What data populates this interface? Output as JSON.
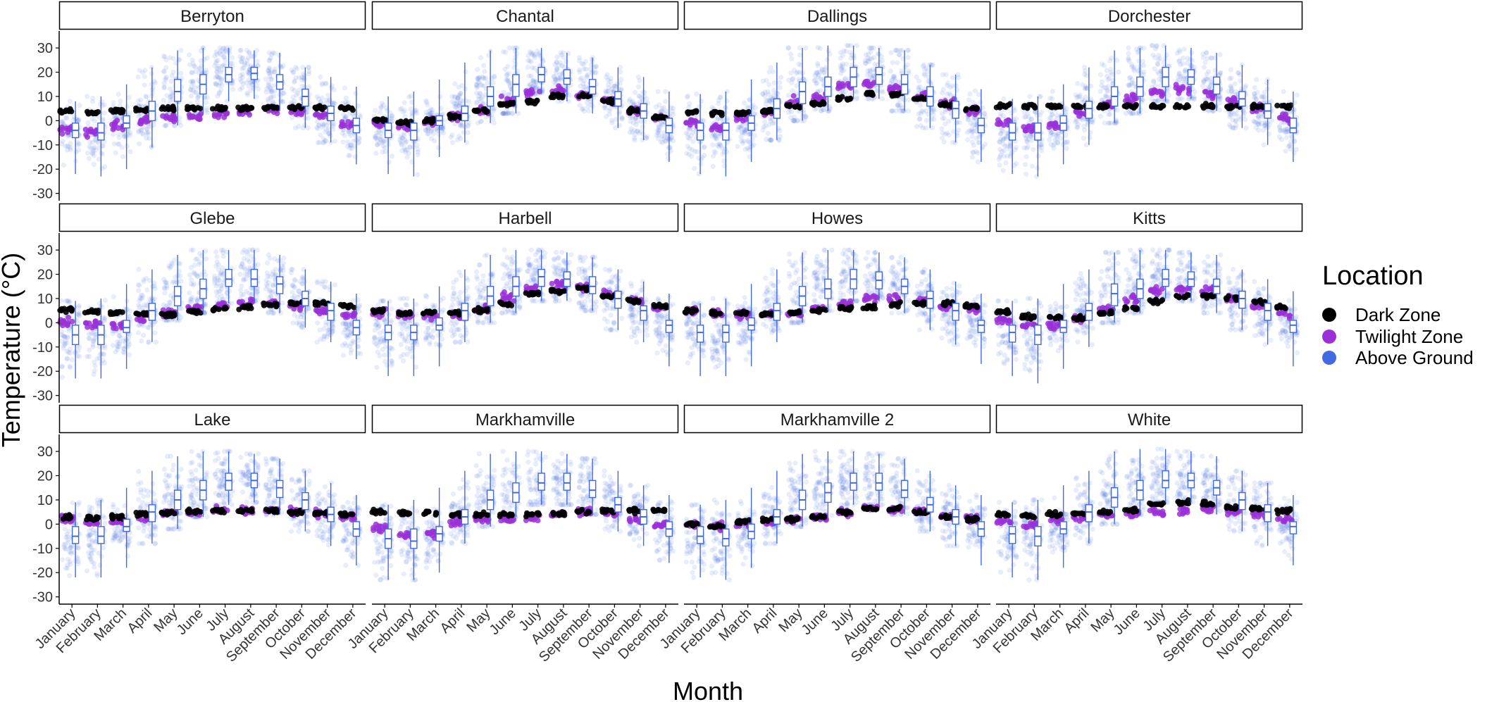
{
  "colors": {
    "dark_zone": "#000000",
    "twilight_zone": "#9b30d9",
    "above_ground": "#4169e1",
    "box_fill": "#ffffff",
    "strip_border": "#000000",
    "axis": "#000000",
    "tick_text": "#333333"
  },
  "chart_data": {
    "type": "scatter",
    "subtype": "faceted jittered points with boxplots",
    "xlabel": "Month",
    "ylabel": "Temperature (°C)",
    "ylim": [
      -33,
      37
    ],
    "y_ticks": [
      -30,
      -20,
      -10,
      0,
      10,
      20,
      30
    ],
    "months": [
      "January",
      "February",
      "March",
      "April",
      "May",
      "June",
      "July",
      "August",
      "September",
      "October",
      "November",
      "December"
    ],
    "grid": false,
    "legend": {
      "title": "Location",
      "placement": "right",
      "entries": [
        "Dark Zone",
        "Twilight Zone",
        "Above Ground"
      ]
    },
    "facet_layout": {
      "rows": 3,
      "cols": 4
    },
    "facets": [
      {
        "title": "Berryton",
        "dark": [
          4,
          3.5,
          4,
          4.5,
          5,
          5,
          5,
          5,
          5.5,
          5.5,
          5.5,
          5
        ],
        "twilight": [
          -4,
          -5,
          -2,
          0,
          1,
          1.5,
          2.5,
          3.5,
          4.5,
          4,
          2,
          -1.5
        ],
        "above": {
          "median": [
            -4,
            -5,
            -1,
            4,
            12,
            15,
            19,
            19.5,
            16,
            10,
            3,
            -2
          ],
          "q1": [
            -7,
            -8,
            -3,
            0,
            8,
            11,
            16,
            17,
            13,
            6,
            0,
            -5
          ],
          "q3": [
            -1,
            -1,
            2,
            8,
            17,
            19,
            22,
            22,
            19,
            13,
            6,
            1
          ],
          "min": [
            -22,
            -23,
            -20,
            -11,
            -2,
            3,
            8,
            9,
            4,
            -3,
            -9,
            -18
          ],
          "max": [
            8,
            10,
            15,
            22,
            29,
            30,
            30,
            29,
            28,
            22,
            18,
            14
          ]
        }
      },
      {
        "title": "Chantal",
        "dark": [
          0,
          -1,
          0,
          2,
          4,
          7,
          8,
          10,
          10.5,
          8,
          4,
          1.5
        ],
        "twilight": [
          -1,
          -2.5,
          0,
          2,
          4,
          8,
          11,
          12,
          11,
          8,
          4,
          1
        ],
        "above": {
          "median": [
            -4,
            -4,
            0,
            3,
            10,
            15,
            19,
            17.5,
            14,
            9,
            4,
            -2
          ],
          "q1": [
            -7,
            -8,
            -2,
            0,
            6,
            10,
            16,
            15,
            11,
            6,
            1,
            -5
          ],
          "q3": [
            -1,
            -1,
            2,
            6,
            14,
            19,
            22,
            21,
            17,
            12,
            7,
            1
          ],
          "min": [
            -22,
            -23,
            -15,
            -9,
            -1,
            3,
            11,
            8,
            3,
            -3,
            -8,
            -17
          ],
          "max": [
            10,
            12,
            17,
            24,
            29,
            30,
            30,
            28,
            26,
            22,
            18,
            12
          ]
        }
      },
      {
        "title": "Dallings",
        "dark": [
          3.5,
          3,
          3,
          4,
          6,
          7,
          9,
          11,
          11,
          9,
          6.5,
          5
        ],
        "twilight": [
          -1,
          -3,
          1,
          3,
          8,
          10,
          14,
          15,
          13,
          10,
          7,
          4
        ],
        "above": {
          "median": [
            -4,
            -4,
            -1,
            5,
            12,
            14,
            18,
            19,
            15,
            10,
            5,
            -2
          ],
          "q1": [
            -8,
            -8,
            -4,
            1,
            7,
            10,
            14,
            15,
            11,
            6,
            1,
            -5
          ],
          "q3": [
            -1,
            -1,
            2,
            9,
            16,
            18,
            22,
            22,
            19,
            14,
            8,
            1
          ],
          "min": [
            -22,
            -23,
            -17,
            -8,
            0,
            4,
            9,
            9,
            4,
            -3,
            -9,
            -17
          ],
          "max": [
            11,
            12,
            17,
            24,
            30,
            31,
            31,
            30,
            29,
            23,
            19,
            13
          ]
        }
      },
      {
        "title": "Dorchester",
        "dark": [
          6,
          6,
          6,
          6,
          6,
          6,
          6,
          6,
          6,
          6,
          6,
          6
        ],
        "twilight": [
          -1,
          -3,
          -2,
          3,
          7,
          9,
          12,
          13,
          11,
          8,
          5,
          1
        ],
        "above": {
          "median": [
            -5,
            -5,
            -1,
            5,
            10,
            14,
            18,
            18,
            15,
            9,
            4,
            -3
          ],
          "q1": [
            -8,
            -8,
            -4,
            1,
            6,
            10,
            14,
            15,
            11,
            6,
            1,
            -5
          ],
          "q3": [
            -1,
            -1,
            2,
            8,
            14,
            18,
            22,
            21,
            18,
            12,
            7,
            1
          ],
          "min": [
            -22,
            -23,
            -18,
            -10,
            -1,
            3,
            8,
            9,
            4,
            -3,
            -10,
            -17
          ],
          "max": [
            9,
            10,
            15,
            22,
            29,
            30,
            31,
            30,
            28,
            23,
            17,
            12
          ]
        }
      },
      {
        "title": "Glebe",
        "dark": [
          5.5,
          5,
          4,
          3.5,
          3.5,
          4.5,
          6,
          6.5,
          7.5,
          8,
          8,
          7
        ],
        "twilight": [
          0,
          -1,
          -1,
          2,
          4,
          6,
          7,
          8,
          8,
          7,
          5,
          3
        ],
        "above": {
          "median": [
            -5,
            -5,
            -2,
            5,
            11,
            14,
            18,
            18,
            16,
            10,
            5,
            -2
          ],
          "q1": [
            -9,
            -9,
            -4,
            1,
            7,
            10,
            15,
            15,
            12,
            7,
            1,
            -5
          ],
          "q3": [
            -1,
            -1,
            1,
            8,
            15,
            18,
            22,
            22,
            19,
            13,
            8,
            1
          ],
          "min": [
            -23,
            -23,
            -19,
            -8,
            1,
            4,
            8,
            9,
            4,
            -2,
            -8,
            -15
          ],
          "max": [
            9,
            10,
            16,
            22,
            28,
            30,
            30,
            30,
            28,
            22,
            17,
            12
          ]
        }
      },
      {
        "title": "Harbell",
        "dark": [
          5,
          4,
          4,
          4,
          5,
          8,
          12,
          13,
          14,
          11,
          9,
          7
        ],
        "twilight": [
          4,
          3,
          3,
          3,
          6,
          11,
          14,
          16,
          15,
          12,
          9,
          6
        ],
        "above": {
          "median": [
            -4,
            -4,
            -1,
            5,
            11,
            15,
            19,
            18,
            15,
            10,
            5,
            -1
          ],
          "q1": [
            -7,
            -7,
            -3,
            1,
            7,
            11,
            15,
            15,
            12,
            6,
            1,
            -4
          ],
          "q3": [
            -1,
            -1,
            2,
            8,
            15,
            19,
            22,
            21,
            19,
            13,
            7,
            1
          ],
          "min": [
            -22,
            -22,
            -18,
            -8,
            0,
            4,
            9,
            9,
            5,
            -3,
            -8,
            -18
          ],
          "max": [
            9,
            10,
            15,
            22,
            28,
            30,
            30,
            29,
            27,
            22,
            17,
            12
          ]
        }
      },
      {
        "title": "Howes",
        "dark": [
          5,
          4,
          4,
          3.5,
          4,
          5,
          6,
          6.5,
          7.5,
          8,
          8,
          7
        ],
        "twilight": [
          5,
          4,
          3.5,
          3.5,
          4,
          6,
          8,
          10,
          10,
          9,
          7,
          6
        ],
        "above": {
          "median": [
            -4,
            -4,
            -1,
            5,
            11,
            14,
            18,
            17.5,
            15,
            10,
            5,
            -1
          ],
          "q1": [
            -8,
            -8,
            -3,
            1,
            7,
            10,
            14,
            14,
            12,
            6,
            1,
            -4
          ],
          "q3": [
            -1,
            -1,
            2,
            8,
            15,
            18,
            22,
            21,
            18,
            13,
            8,
            1
          ],
          "min": [
            -22,
            -22,
            -18,
            -8,
            0,
            5,
            9,
            9,
            4,
            -3,
            -9,
            -17
          ],
          "max": [
            8,
            10,
            16,
            22,
            29,
            30,
            30,
            29,
            27,
            22,
            17,
            12
          ]
        }
      },
      {
        "title": "Kitts",
        "dark": [
          4.5,
          2.5,
          2,
          2,
          4,
          6,
          9,
          11,
          11,
          10,
          8.5,
          6.5
        ],
        "twilight": [
          1,
          -1,
          -1,
          2,
          6,
          10,
          13,
          14,
          13,
          10,
          7,
          4
        ],
        "above": {
          "median": [
            -4,
            -5,
            -2,
            5,
            12,
            14,
            18,
            18,
            15,
            10,
            5,
            -1
          ],
          "q1": [
            -8,
            -9,
            -4,
            1,
            7,
            10,
            15,
            15,
            12,
            6,
            1,
            -4
          ],
          "q3": [
            -1,
            -1,
            1,
            8,
            16,
            18,
            22,
            21,
            18,
            13,
            8,
            1
          ],
          "min": [
            -22,
            -25,
            -19,
            -10,
            0,
            4,
            10,
            9,
            4,
            -3,
            -9,
            -18
          ],
          "max": [
            9,
            10,
            16,
            22,
            29,
            30,
            30,
            29,
            28,
            22,
            18,
            13
          ]
        }
      },
      {
        "title": "Lake",
        "dark": [
          3,
          2.5,
          3,
          4,
          5,
          5,
          5.5,
          5.5,
          5.5,
          5,
          4.5,
          4
        ],
        "twilight": [
          2,
          1,
          1,
          3,
          5,
          5,
          5.5,
          5.5,
          5.5,
          5,
          4,
          3
        ],
        "above": {
          "median": [
            -5,
            -5,
            -1,
            5,
            10,
            14,
            18,
            18,
            15,
            10,
            4,
            -2
          ],
          "q1": [
            -8,
            -8,
            -3,
            1,
            6,
            10,
            14,
            15,
            11,
            6,
            1,
            -5
          ],
          "q3": [
            -1,
            -1,
            2,
            8,
            14,
            18,
            21,
            21,
            18,
            13,
            7,
            1
          ],
          "min": [
            -22,
            -22,
            -18,
            -8,
            -2,
            3,
            8,
            9,
            4,
            -3,
            -9,
            -17
          ],
          "max": [
            9,
            10,
            15,
            22,
            28,
            30,
            30,
            29,
            27,
            22,
            17,
            12
          ]
        }
      },
      {
        "title": "Markhamville",
        "dark": [
          5,
          4.5,
          4.5,
          4,
          4,
          4,
          4,
          4.5,
          5,
          5.5,
          5.5,
          5.5
        ],
        "twilight": [
          -2,
          -4,
          -4,
          1,
          1.5,
          2,
          2.5,
          4,
          5,
          4,
          2,
          0
        ],
        "above": {
          "median": [
            -6,
            -7,
            -4,
            3,
            10,
            13,
            17,
            17,
            14,
            8,
            3,
            -2
          ],
          "q1": [
            -10,
            -10,
            -7,
            0,
            6,
            9,
            14,
            14,
            11,
            5,
            0,
            -5
          ],
          "q3": [
            -2,
            -2,
            -1,
            6,
            14,
            17,
            21,
            21,
            18,
            11,
            6,
            1
          ],
          "min": [
            -23,
            -23,
            -20,
            -8,
            -1,
            3,
            8,
            8,
            4,
            -3,
            -9,
            -16
          ],
          "max": [
            8,
            10,
            15,
            22,
            29,
            30,
            30,
            29,
            27,
            22,
            16,
            12
          ]
        }
      },
      {
        "title": "Markhamville 2",
        "dark": [
          0,
          -1,
          1,
          1.5,
          2,
          3,
          5,
          6.5,
          6.5,
          5,
          3,
          2
        ],
        "twilight": [
          0,
          -1,
          0,
          1.5,
          2,
          3,
          5,
          6.5,
          6.5,
          5,
          3,
          2
        ],
        "above": {
          "median": [
            -5,
            -6,
            -3,
            3,
            10,
            13,
            17,
            17,
            14,
            8,
            3,
            -2
          ],
          "q1": [
            -8,
            -9,
            -6,
            0,
            6,
            9,
            14,
            14,
            11,
            5,
            0,
            -5
          ],
          "q3": [
            -1,
            -2,
            0,
            6,
            14,
            17,
            21,
            21,
            18,
            11,
            6,
            1
          ],
          "min": [
            -22,
            -23,
            -18,
            -8,
            -1,
            3,
            8,
            8,
            4,
            -3,
            -9,
            -17
          ],
          "max": [
            8,
            10,
            15,
            22,
            29,
            30,
            30,
            29,
            27,
            22,
            16,
            12
          ]
        }
      },
      {
        "title": "White",
        "dark": [
          4,
          3.5,
          4,
          4,
          5,
          6,
          8,
          9,
          8.5,
          7,
          6.5,
          5.5
        ],
        "twilight": [
          1,
          0,
          2,
          3,
          4,
          4.5,
          5,
          5.5,
          6,
          5,
          4,
          2
        ],
        "above": {
          "median": [
            -4,
            -5,
            -2,
            5,
            11,
            14,
            18,
            18,
            15,
            10,
            5,
            -1
          ],
          "q1": [
            -8,
            -9,
            -4,
            1,
            7,
            10,
            15,
            15,
            12,
            6,
            1,
            -4
          ],
          "q3": [
            -1,
            -1,
            1,
            8,
            15,
            18,
            22,
            21,
            18,
            13,
            8,
            1
          ],
          "min": [
            -22,
            -23,
            -18,
            -8,
            0,
            4,
            9,
            9,
            4,
            -3,
            -9,
            -17
          ],
          "max": [
            9,
            10,
            16,
            22,
            30,
            31,
            31,
            30,
            28,
            22,
            17,
            12
          ]
        }
      }
    ]
  }
}
